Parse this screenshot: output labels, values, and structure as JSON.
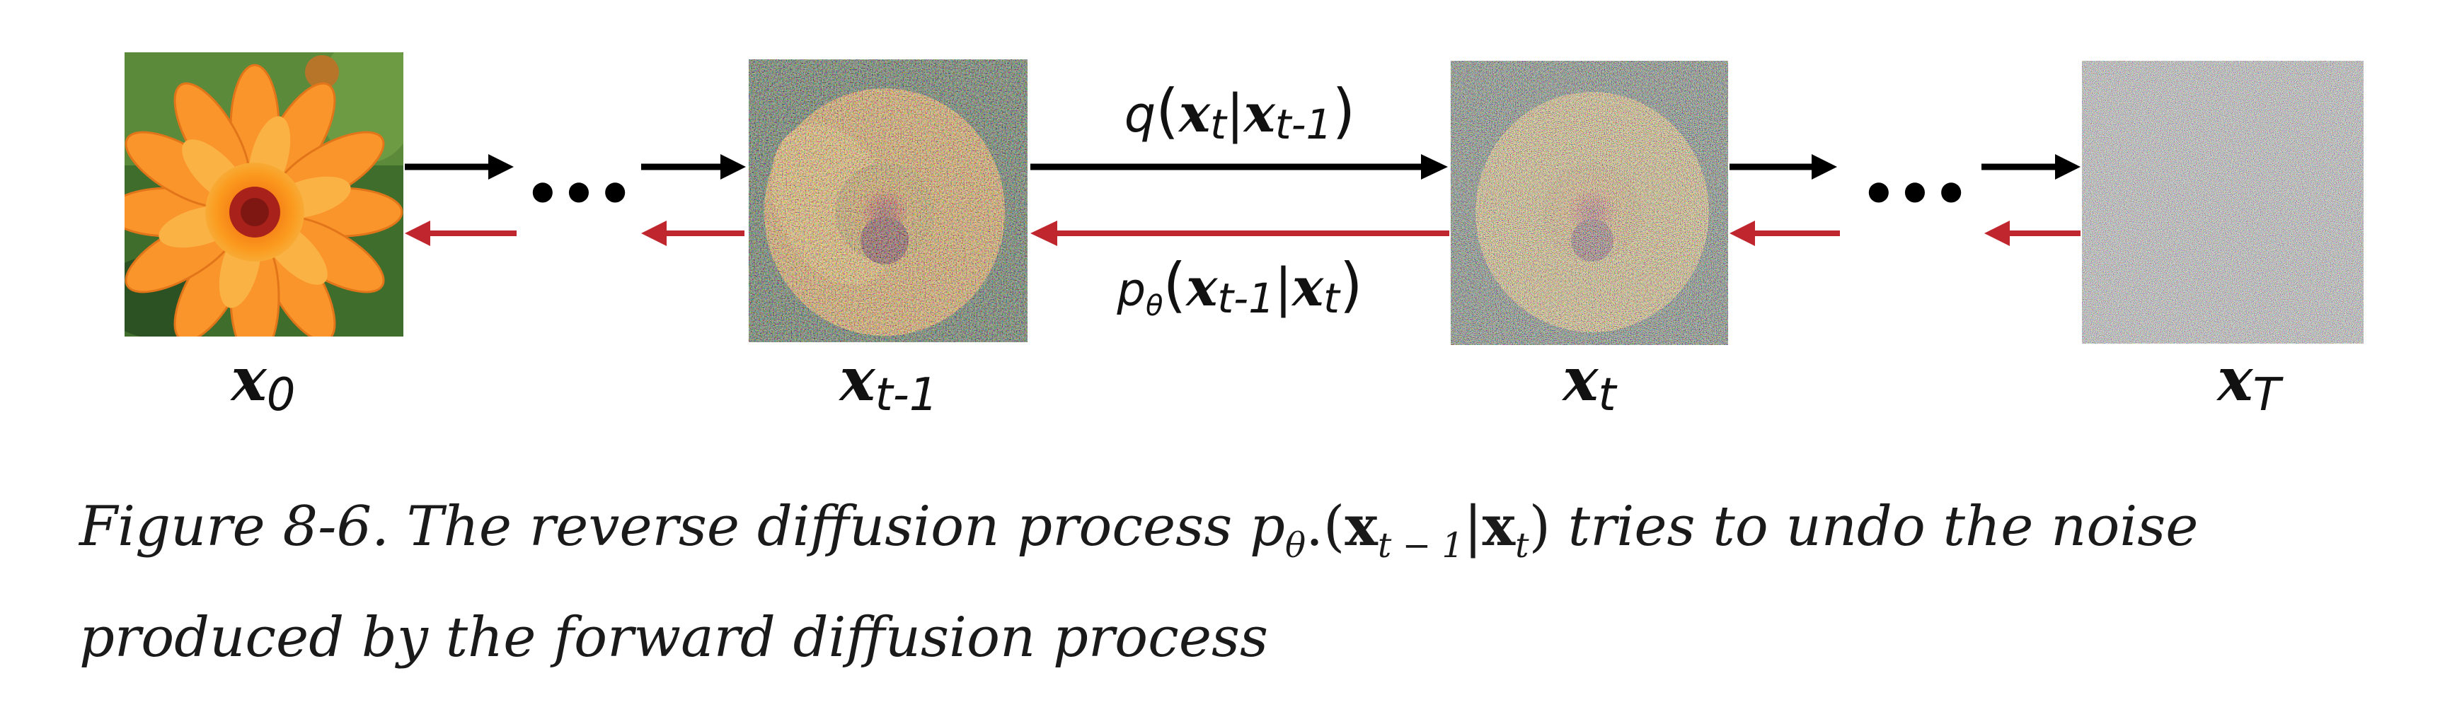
{
  "nodes": [
    {
      "id": "x0",
      "base": "x",
      "sub": "0",
      "image": "photo of an orange flower"
    },
    {
      "id": "xt-1",
      "base": "x",
      "sub": "t-1",
      "image": "partially noised flower"
    },
    {
      "id": "xt",
      "base": "x",
      "sub": "t",
      "image": "heavily noised flower"
    },
    {
      "id": "xT",
      "base": "x",
      "sub": "T",
      "image": "pure Gaussian noise"
    }
  ],
  "forward_label": {
    "fn": "q",
    "x1": "x",
    "s1": "t",
    "sep": "|",
    "x2": "x",
    "s2": "t-1"
  },
  "reverse_label": {
    "fn": "p",
    "fn_sub": "θ",
    "x1": "x",
    "s1": "t-1",
    "sep": "|",
    "x2": "x",
    "s2": "t"
  },
  "ellipsis": "•••",
  "colors": {
    "forward_arrow": "#000000",
    "reverse_arrow": "#c0262d"
  },
  "caption": {
    "prefix": "Figure 8-6. The reverse diffusion process ",
    "p": "p",
    "theta": "θ",
    "dot": ".",
    "open": "(",
    "x_a": "x",
    "sub_a": "t − 1",
    "bar": "|",
    "x_b": "x",
    "sub_b": "t",
    "close": ")",
    "suffix": " tries to undo the noise produced by the forward diffusion process"
  }
}
